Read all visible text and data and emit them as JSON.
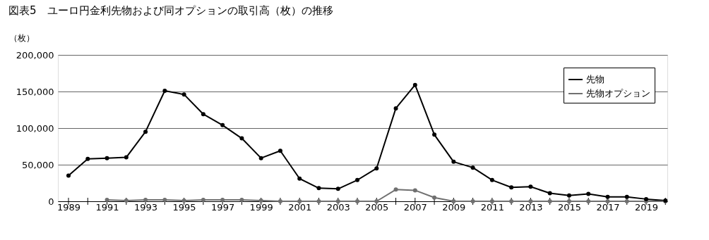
{
  "chart_data": {
    "type": "line",
    "title": "図表5　ユーロ円金利先物および同オプションの取引高（枚）の推移",
    "ylabel": "（枚）",
    "x": [
      1989,
      1990,
      1991,
      1992,
      1993,
      1994,
      1995,
      1996,
      1997,
      1998,
      1999,
      2000,
      2001,
      2002,
      2003,
      2004,
      2005,
      2006,
      2007,
      2008,
      2009,
      2010,
      2011,
      2012,
      2013,
      2014,
      2015,
      2016,
      2017,
      2018,
      2019,
      2020
    ],
    "series": [
      {
        "name": "先物",
        "color": "#000000",
        "values": [
          35000,
          58000,
          59000,
          60000,
          95000,
          151000,
          146000,
          119000,
          104000,
          86000,
          59000,
          69000,
          31000,
          18000,
          17000,
          29000,
          45000,
          127000,
          159000,
          91000,
          54000,
          46000,
          29000,
          19000,
          20000,
          11000,
          8000,
          10000,
          6000,
          6000,
          3000,
          1000
        ]
      },
      {
        "name": "先物オプション",
        "color": "#707070",
        "values": [
          null,
          null,
          2000,
          1000,
          2000,
          2000,
          1000,
          2000,
          2000,
          2000,
          1000,
          0,
          0,
          0,
          0,
          0,
          0,
          16000,
          15000,
          5000,
          0,
          0,
          0,
          0,
          0,
          0,
          0,
          0,
          0,
          0,
          0,
          0
        ]
      }
    ],
    "xlim": [
      1988.45,
      2020.1
    ],
    "xticks": [
      1989,
      {
        "value": 1990,
        "label": null
      },
      1991,
      {
        "value": 1992,
        "label": null
      },
      1993,
      {
        "value": 1994,
        "label": null
      },
      1995,
      {
        "value": 1996,
        "label": null
      },
      1997,
      {
        "value": 1998,
        "label": null
      },
      1999,
      {
        "value": 2000,
        "label": null
      },
      2001,
      {
        "value": 2002,
        "label": null
      },
      2003,
      {
        "value": 2004,
        "label": null
      },
      2005,
      {
        "value": 2006,
        "label": null
      },
      2007,
      {
        "value": 2008,
        "label": null
      },
      2009,
      {
        "value": 2010,
        "label": null
      },
      2011,
      {
        "value": 2012,
        "label": null
      },
      2013,
      {
        "value": 2014,
        "label": null
      },
      2015,
      {
        "value": 2016,
        "label": null
      },
      2017,
      {
        "value": 2018,
        "label": null
      },
      2019,
      {
        "value": 2020,
        "label": null
      }
    ],
    "ylim": [
      0,
      200000
    ],
    "yticks": [
      {
        "value": 0,
        "label": "0"
      },
      {
        "value": 50000,
        "label": "50,000"
      },
      {
        "value": 100000,
        "label": "100,000"
      },
      {
        "value": 150000,
        "label": "150,000"
      },
      {
        "value": 200000,
        "label": "200,000"
      }
    ],
    "grid": "y",
    "legend": "top right",
    "marker": "circle",
    "line_style": "solid"
  }
}
